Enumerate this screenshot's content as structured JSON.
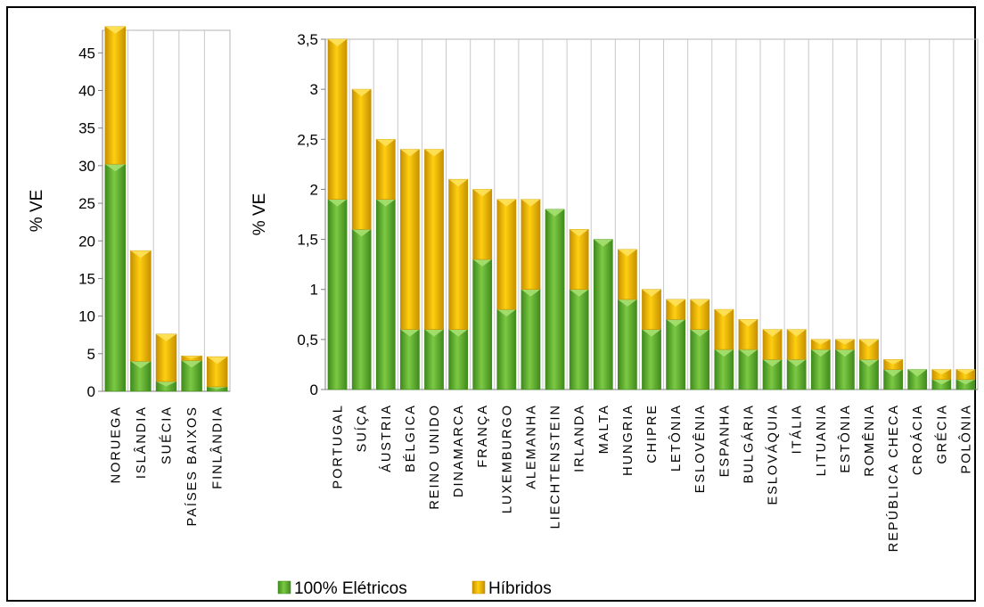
{
  "chart_data": [
    {
      "type": "bar",
      "stacked": true,
      "ylabel": "% VE",
      "ylim": [
        0,
        48
      ],
      "yticks": [
        "0",
        "5",
        "10",
        "15",
        "20",
        "25",
        "30",
        "35",
        "40",
        "45"
      ],
      "ytick_values": [
        0,
        5,
        10,
        15,
        20,
        25,
        30,
        35,
        40,
        45
      ],
      "categories": [
        "NORUEGA",
        "ISLÂNDIA",
        "SUÉCIA",
        "PAÍSES BAIXOS",
        "FINLÂNDIA"
      ],
      "series": [
        {
          "name": "100% Elétricos",
          "values": [
            30.2,
            4.0,
            1.3,
            4.1,
            0.6
          ]
        },
        {
          "name": "Híbridos",
          "values": [
            18.3,
            14.7,
            6.3,
            0.6,
            4.0
          ]
        }
      ]
    },
    {
      "type": "bar",
      "stacked": true,
      "ylabel": "% VE",
      "ylim": [
        0,
        3.5
      ],
      "yticks": [
        "0",
        "0,5",
        "1",
        "1,5",
        "2",
        "2,5",
        "3",
        "3,5"
      ],
      "ytick_values": [
        0,
        0.5,
        1,
        1.5,
        2,
        2.5,
        3,
        3.5
      ],
      "categories": [
        "PORTUGAL",
        "SUÍÇA",
        "ÁUSTRIA",
        "BÉLGICA",
        "REINO UNIDO",
        "DINAMARCA",
        "FRANÇA",
        "LUXEMBURGO",
        "ALEMANHA",
        "LIECHTENSTEIN",
        "IRLANDA",
        "MALTA",
        "HUNGRIA",
        "CHIPRE",
        "LETÔNIA",
        "ESLOVÊNIA",
        "ESPANHA",
        "BULGÁRIA",
        "ESLOVÁQUIA",
        "ITÁLIA",
        "LITUANIA",
        "ESTÔNIA",
        "ROMÊNIA",
        "REPÚBLICA CHECA",
        "CROÁCIA",
        "GRÉCIA",
        "POLÔNIA"
      ],
      "series": [
        {
          "name": "100% Elétricos",
          "values": [
            1.9,
            1.6,
            1.9,
            0.6,
            0.6,
            0.6,
            1.3,
            0.8,
            1.0,
            1.8,
            1.0,
            1.5,
            0.9,
            0.6,
            0.7,
            0.6,
            0.4,
            0.4,
            0.3,
            0.3,
            0.4,
            0.4,
            0.3,
            0.2,
            0.2,
            0.1,
            0.1
          ]
        },
        {
          "name": "Híbridos",
          "values": [
            1.6,
            1.4,
            0.6,
            1.8,
            1.8,
            1.5,
            0.7,
            1.1,
            0.9,
            0.0,
            0.6,
            0.0,
            0.5,
            0.4,
            0.2,
            0.3,
            0.4,
            0.3,
            0.3,
            0.3,
            0.1,
            0.1,
            0.2,
            0.1,
            0.0,
            0.1,
            0.1
          ]
        }
      ]
    }
  ],
  "legend": {
    "placement": "bottom",
    "items": [
      {
        "label": "100% Elétricos",
        "color": "#5fb532"
      },
      {
        "label": "Híbridos",
        "color": "#f2b800"
      }
    ]
  },
  "colors": {
    "electric_light": "#8fd45a",
    "electric_dark": "#3f8a1c",
    "hybrid_light": "#ffd200",
    "hybrid_dark": "#c79000"
  }
}
